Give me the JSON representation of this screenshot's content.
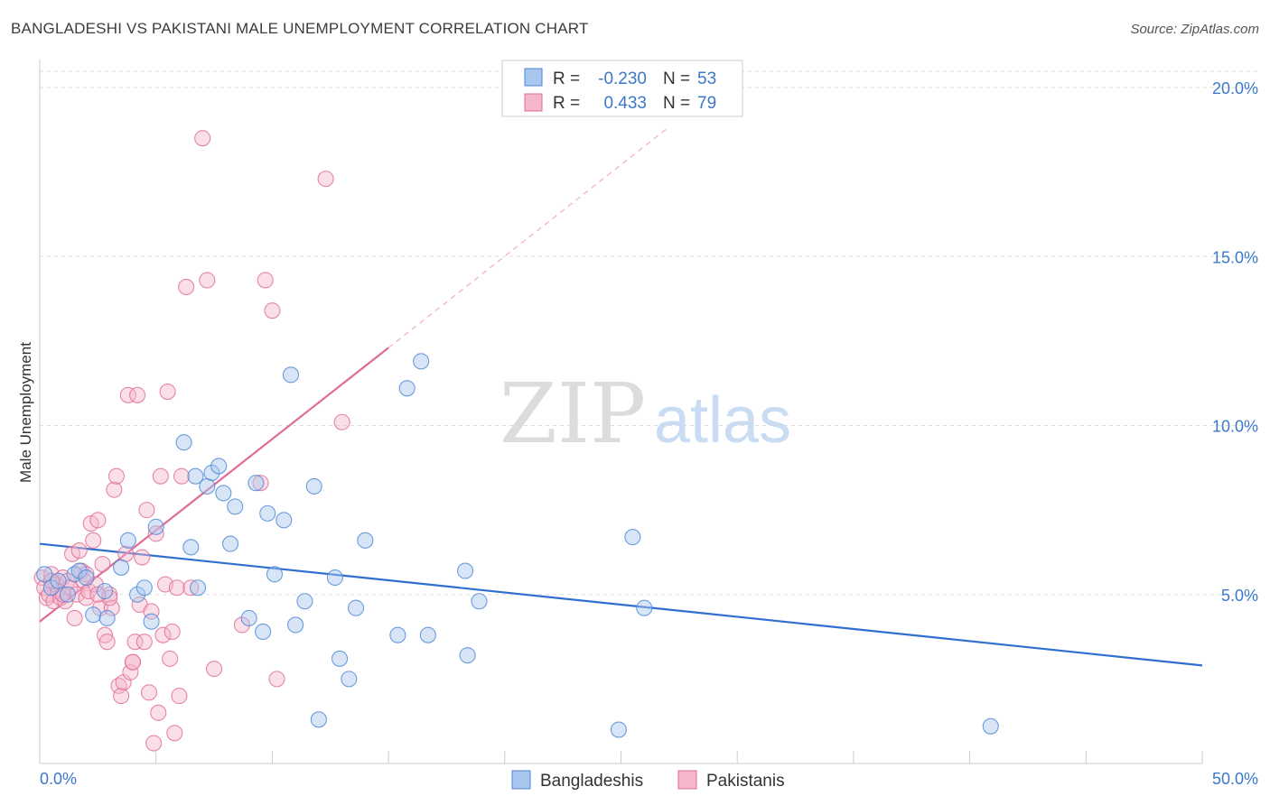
{
  "header": {
    "title": "BANGLADESHI VS PAKISTANI MALE UNEMPLOYMENT CORRELATION CHART",
    "source": "Source: ZipAtlas.com"
  },
  "watermark": {
    "zip": "ZIP",
    "atlas": "atlas"
  },
  "legend": {
    "rows": [
      {
        "r_label": "R = ",
        "r_value": "-0.230",
        "n_label": "N = ",
        "n_value": "53"
      },
      {
        "r_label": "R = ",
        "r_value": "0.433",
        "n_label": "N = ",
        "n_value": "79"
      }
    ]
  },
  "bottom_legend": {
    "items": [
      "Bangladeshis",
      "Pakistanis"
    ]
  },
  "chart_data": {
    "type": "scatter",
    "xlabel": "",
    "ylabel": "Male Unemployment",
    "xlim": [
      0,
      50
    ],
    "ylim": [
      0,
      20
    ],
    "x_tick_labels": [
      "0.0%",
      "50.0%"
    ],
    "y_ticks": [
      5,
      10,
      15,
      20
    ],
    "y_tick_labels": [
      "5.0%",
      "10.0%",
      "15.0%",
      "20.0%"
    ],
    "grid": true,
    "colors": {
      "bangladeshis": "#4a86d4",
      "bangladeshis_fill": "#a9c6ee",
      "pakistanis": "#e06c94",
      "pakistanis_fill": "#f4b6cb",
      "axis_text": "#3b78c9"
    },
    "series": [
      {
        "name": "Bangladeshis",
        "points": [
          [
            0.2,
            5.6
          ],
          [
            0.5,
            5.2
          ],
          [
            0.8,
            5.4
          ],
          [
            1.2,
            5.0
          ],
          [
            1.5,
            5.6
          ],
          [
            1.7,
            5.7
          ],
          [
            2.0,
            5.5
          ],
          [
            2.3,
            4.4
          ],
          [
            2.8,
            5.1
          ],
          [
            3.5,
            5.8
          ],
          [
            3.8,
            6.6
          ],
          [
            4.2,
            5.0
          ],
          [
            4.5,
            5.2
          ],
          [
            4.8,
            4.2
          ],
          [
            5.0,
            7.0
          ],
          [
            6.2,
            9.5
          ],
          [
            6.5,
            6.4
          ],
          [
            6.7,
            8.5
          ],
          [
            6.8,
            5.2
          ],
          [
            7.2,
            8.2
          ],
          [
            7.4,
            8.6
          ],
          [
            7.7,
            8.8
          ],
          [
            7.9,
            8.0
          ],
          [
            8.2,
            6.5
          ],
          [
            8.4,
            7.6
          ],
          [
            9.0,
            4.3
          ],
          [
            9.3,
            8.3
          ],
          [
            9.6,
            3.9
          ],
          [
            9.8,
            7.4
          ],
          [
            10.1,
            5.6
          ],
          [
            10.5,
            7.2
          ],
          [
            10.8,
            11.5
          ],
          [
            11.0,
            4.1
          ],
          [
            11.4,
            4.8
          ],
          [
            11.8,
            8.2
          ],
          [
            12.0,
            1.3
          ],
          [
            12.7,
            5.5
          ],
          [
            12.9,
            3.1
          ],
          [
            13.3,
            2.5
          ],
          [
            13.6,
            4.6
          ],
          [
            14.0,
            6.6
          ],
          [
            15.4,
            3.8
          ],
          [
            15.8,
            11.1
          ],
          [
            16.4,
            11.9
          ],
          [
            16.7,
            3.8
          ],
          [
            18.3,
            5.7
          ],
          [
            18.4,
            3.2
          ],
          [
            18.9,
            4.8
          ],
          [
            24.9,
            1.0
          ],
          [
            25.5,
            6.7
          ],
          [
            26.0,
            4.6
          ],
          [
            40.9,
            1.1
          ],
          [
            2.9,
            4.3
          ]
        ]
      },
      {
        "name": "Pakistanis",
        "points": [
          [
            0.1,
            5.5
          ],
          [
            0.2,
            5.2
          ],
          [
            0.3,
            4.9
          ],
          [
            0.4,
            5.0
          ],
          [
            0.5,
            5.6
          ],
          [
            0.6,
            4.8
          ],
          [
            0.7,
            5.3
          ],
          [
            0.8,
            5.1
          ],
          [
            0.9,
            4.9
          ],
          [
            1.0,
            5.5
          ],
          [
            1.1,
            4.8
          ],
          [
            1.2,
            5.4
          ],
          [
            1.3,
            5.2
          ],
          [
            1.4,
            6.2
          ],
          [
            1.5,
            4.3
          ],
          [
            1.6,
            5.0
          ],
          [
            1.7,
            6.3
          ],
          [
            1.8,
            5.7
          ],
          [
            1.9,
            5.4
          ],
          [
            2.0,
            4.9
          ],
          [
            2.1,
            5.1
          ],
          [
            2.2,
            7.1
          ],
          [
            2.3,
            6.6
          ],
          [
            2.4,
            5.3
          ],
          [
            2.5,
            7.2
          ],
          [
            2.6,
            4.6
          ],
          [
            2.7,
            5.9
          ],
          [
            2.8,
            3.8
          ],
          [
            2.9,
            3.6
          ],
          [
            3.0,
            5.0
          ],
          [
            3.1,
            4.6
          ],
          [
            3.2,
            8.1
          ],
          [
            3.3,
            8.5
          ],
          [
            3.4,
            2.3
          ],
          [
            3.5,
            2.0
          ],
          [
            3.6,
            2.4
          ],
          [
            3.7,
            6.2
          ],
          [
            3.8,
            10.9
          ],
          [
            3.9,
            2.7
          ],
          [
            4.0,
            3.0
          ],
          [
            4.1,
            3.6
          ],
          [
            4.2,
            10.9
          ],
          [
            4.3,
            4.7
          ],
          [
            4.4,
            6.1
          ],
          [
            4.5,
            3.6
          ],
          [
            4.6,
            7.5
          ],
          [
            4.7,
            2.1
          ],
          [
            4.8,
            4.5
          ],
          [
            4.9,
            0.6
          ],
          [
            5.0,
            6.8
          ],
          [
            5.1,
            1.5
          ],
          [
            5.2,
            8.5
          ],
          [
            5.3,
            3.8
          ],
          [
            5.4,
            5.3
          ],
          [
            5.5,
            11.0
          ],
          [
            5.6,
            3.1
          ],
          [
            5.7,
            3.9
          ],
          [
            5.8,
            0.9
          ],
          [
            5.9,
            5.2
          ],
          [
            6.0,
            2.0
          ],
          [
            6.1,
            8.5
          ],
          [
            6.3,
            14.1
          ],
          [
            6.5,
            5.2
          ],
          [
            7.0,
            18.5
          ],
          [
            7.2,
            14.3
          ],
          [
            7.5,
            2.8
          ],
          [
            8.7,
            4.1
          ],
          [
            9.5,
            8.3
          ],
          [
            9.7,
            14.3
          ],
          [
            10.0,
            13.4
          ],
          [
            10.2,
            2.5
          ],
          [
            12.3,
            17.3
          ],
          [
            13.0,
            10.1
          ],
          [
            4.0,
            3.0
          ],
          [
            2.0,
            5.6
          ],
          [
            1.0,
            5.0
          ],
          [
            3.0,
            4.9
          ],
          [
            0.5,
            5.4
          ],
          [
            2.5,
            5.0
          ]
        ]
      }
    ],
    "trend_lines": [
      {
        "name": "Bangladeshis",
        "x": [
          0,
          50
        ],
        "y": [
          6.5,
          2.9
        ]
      },
      {
        "name": "Pakistanis",
        "x": [
          0,
          15
        ],
        "y": [
          4.2,
          12.3
        ],
        "dashed_extension_to": [
          27,
          18.8
        ]
      }
    ]
  }
}
